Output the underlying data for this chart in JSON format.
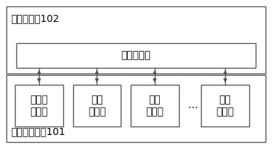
{
  "bg_color": "#ffffff",
  "outer_top_label": "多业务网公102",
  "outer_bottom_label": "监测管理单元101",
  "serial_server_label": "串口服务器",
  "sensors": [
    "温湿度\n传感器",
    "噪声\n传感器",
    "风速\n传感器",
    "粉尘\n传感器"
  ],
  "dots": "…",
  "box_color": "#ffffff",
  "border_color": "#555555",
  "text_color": "#000000",
  "font_size_label": 8.5,
  "font_size_sensor": 8.5,
  "font_size_server": 10,
  "font_size_outer": 9
}
